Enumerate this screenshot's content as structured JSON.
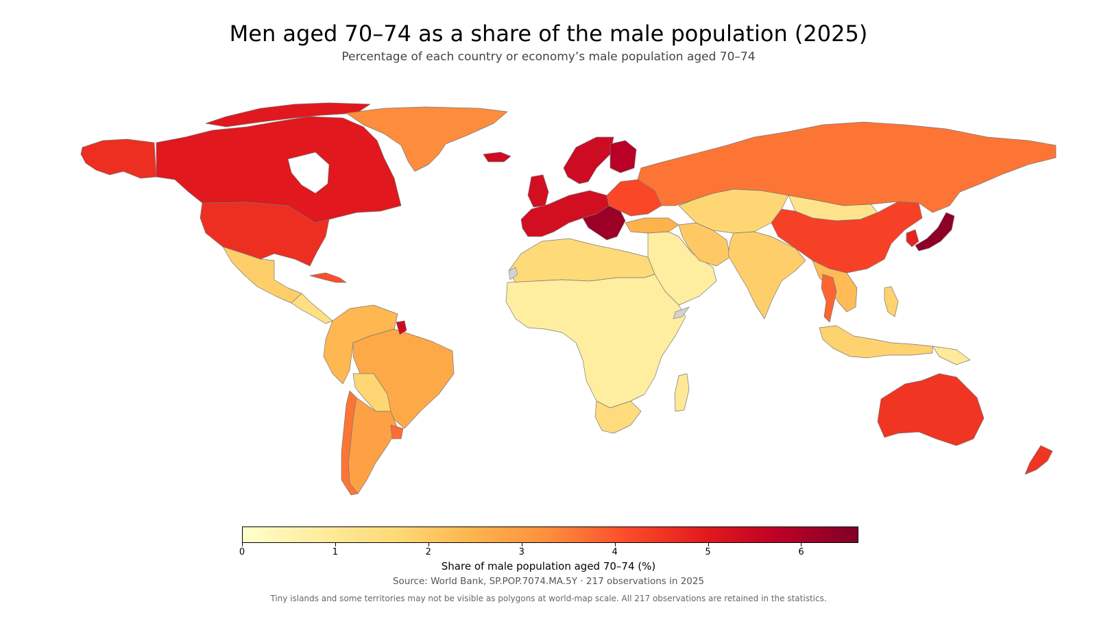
{
  "title": "Men aged 70–74 as a share of the male population (2025)",
  "subtitle": "Percentage of each country or economy’s male population aged 70–74",
  "colorbar": {
    "label": "Share of male population aged 70–74 (%)",
    "min": 0,
    "max": 6.6,
    "ticks": [
      "0",
      "1",
      "2",
      "3",
      "4",
      "5",
      "6"
    ],
    "colormap": "YlOrRd"
  },
  "source": "Source: World Bank, SP.POP.7074.MA.5Y · 217 observations in 2025",
  "note": "Tiny islands and some territories may not be visible as polygons at world-map scale. All 217 observations are retained in the statistics.",
  "colors": {
    "very_low": "#fff3b8",
    "low": "#fee08b",
    "low_mid": "#fdc56a",
    "mid": "#fd9c42",
    "mid_high": "#fd6f32",
    "high": "#f03b24",
    "very_high": "#e31a1c",
    "extreme": "#bd0026",
    "max": "#800026",
    "no_data": "#d3d3d3"
  },
  "map_data": {
    "type": "choropleth",
    "variable": "Share of male population aged 70–74 (%)",
    "year": 2025,
    "observations": 217,
    "regions": [
      {
        "name": "Canada",
        "value": 5.0
      },
      {
        "name": "United States",
        "value": 4.6
      },
      {
        "name": "Mexico",
        "value": 1.9
      },
      {
        "name": "Central America",
        "value": 1.4
      },
      {
        "name": "Cuba",
        "value": 4.1
      },
      {
        "name": "Greenland",
        "value": 3.3
      },
      {
        "name": "Colombia / Venezuela / Ecuador / Peru",
        "value": 2.4
      },
      {
        "name": "Brazil",
        "value": 2.7
      },
      {
        "name": "Bolivia / Paraguay",
        "value": 1.7
      },
      {
        "name": "Argentina",
        "value": 2.9
      },
      {
        "name": "Chile",
        "value": 3.6
      },
      {
        "name": "Uruguay",
        "value": 3.7
      },
      {
        "name": "French Guiana",
        "value": 5.4
      },
      {
        "name": "Western Europe",
        "value": 5.3
      },
      {
        "name": "Nordic countries",
        "value": 5.4
      },
      {
        "name": "Finland",
        "value": 5.8
      },
      {
        "name": "Eastern Europe",
        "value": 4.2
      },
      {
        "name": "Balkans / Italy",
        "value": 6.2
      },
      {
        "name": "Russia",
        "value": 3.6
      },
      {
        "name": "Kazakhstan / Central Asia",
        "value": 1.7
      },
      {
        "name": "Mongolia",
        "value": 1.2
      },
      {
        "name": "China",
        "value": 4.3
      },
      {
        "name": "Japan",
        "value": 6.4
      },
      {
        "name": "South Korea",
        "value": 4.8
      },
      {
        "name": "Turkey",
        "value": 2.5
      },
      {
        "name": "Middle East / Arabian Peninsula",
        "value": 0.8
      },
      {
        "name": "Iran",
        "value": 2.0
      },
      {
        "name": "India",
        "value": 1.9
      },
      {
        "name": "Southeast Asia mainland",
        "value": 2.3
      },
      {
        "name": "Thailand",
        "value": 3.8
      },
      {
        "name": "Indonesia / Philippines",
        "value": 1.8
      },
      {
        "name": "North Africa",
        "value": 1.6
      },
      {
        "name": "Sub-Saharan Africa",
        "value": 0.8
      },
      {
        "name": "South Africa",
        "value": 1.5
      },
      {
        "name": "Madagascar",
        "value": 1.0
      },
      {
        "name": "Australia",
        "value": 4.5
      },
      {
        "name": "New Zealand",
        "value": 4.5
      },
      {
        "name": "Papua New Guinea",
        "value": 0.9
      }
    ]
  }
}
